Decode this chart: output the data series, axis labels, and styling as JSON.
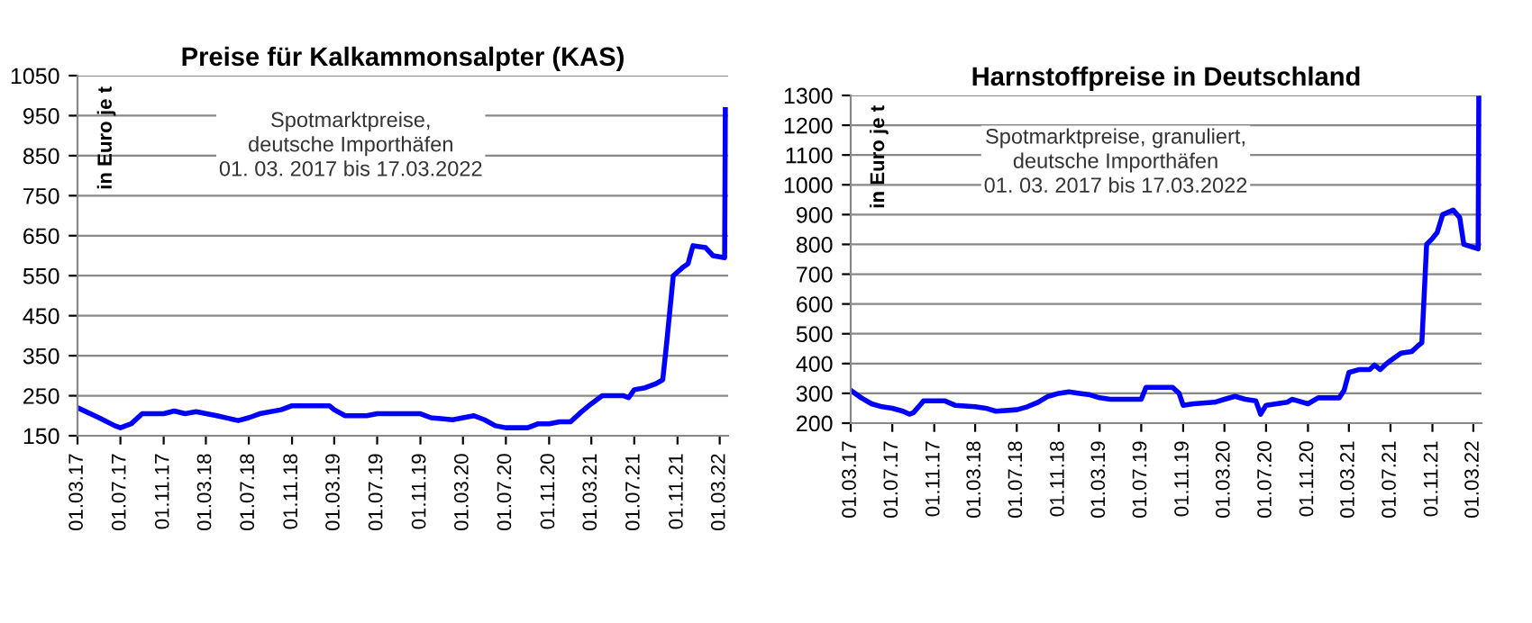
{
  "chart_data": [
    {
      "type": "line",
      "title": "Preise für Kalkammonsalpter (KAS)",
      "ylabel": "in Euro je t",
      "annotations": [
        "Spotmarktpreise,\ndeutsche Importhäfen\n01. 03. 2017 bis 17.03.2022"
      ],
      "x": [
        "2017-03-01",
        "2017-05-01",
        "2017-06-15",
        "2017-07-01",
        "2017-08-01",
        "2017-09-01",
        "2017-11-01",
        "2017-12-01",
        "2018-01-01",
        "2018-02-01",
        "2018-04-01",
        "2018-06-01",
        "2018-07-01",
        "2018-08-01",
        "2018-10-01",
        "2018-11-01",
        "2019-02-15",
        "2019-03-01",
        "2019-04-01",
        "2019-06-01",
        "2019-07-01",
        "2019-11-01",
        "2019-12-01",
        "2020-02-01",
        "2020-04-01",
        "2020-05-01",
        "2020-06-01",
        "2020-07-01",
        "2020-09-01",
        "2020-10-01",
        "2020-11-01",
        "2020-12-01",
        "2021-01-01",
        "2021-02-01",
        "2021-03-01",
        "2021-04-01",
        "2021-06-01",
        "2021-06-15",
        "2021-07-01",
        "2021-08-01",
        "2021-09-01",
        "2021-09-20",
        "2021-10-01",
        "2021-10-20",
        "2021-11-15",
        "2021-12-01",
        "2021-12-15",
        "2022-01-20",
        "2022-02-10",
        "2022-03-15",
        "2022-03-17"
      ],
      "series": [
        {
          "color": "#0000ff",
          "values": [
            220,
            195,
            175,
            170,
            180,
            205,
            205,
            212,
            205,
            210,
            200,
            188,
            195,
            205,
            215,
            225,
            225,
            215,
            200,
            200,
            205,
            205,
            195,
            190,
            200,
            190,
            175,
            170,
            170,
            180,
            180,
            185,
            185,
            210,
            230,
            250,
            250,
            245,
            265,
            270,
            280,
            290,
            380,
            550,
            570,
            580,
            625,
            620,
            600,
            595,
            965
          ]
        }
      ],
      "xlim": [
        "2017-03-01",
        "2022-03-25"
      ],
      "ylim": [
        150,
        1050
      ],
      "yticks": [
        150,
        250,
        350,
        450,
        550,
        650,
        750,
        850,
        950,
        1050
      ],
      "xticks": [
        {
          "value": "2017-03-01",
          "label": "01.03.17"
        },
        {
          "value": "2017-07-01",
          "label": "01.07.17"
        },
        {
          "value": "2017-11-01",
          "label": "01.11.17"
        },
        {
          "value": "2018-03-01",
          "label": "01.03.18"
        },
        {
          "value": "2018-07-01",
          "label": "01.07.18"
        },
        {
          "value": "2018-11-01",
          "label": "01.11.18"
        },
        {
          "value": "2019-03-01",
          "label": "01.03.19"
        },
        {
          "value": "2019-07-01",
          "label": "01.07.19"
        },
        {
          "value": "2019-11-01",
          "label": "01.11.19"
        },
        {
          "value": "2020-03-01",
          "label": "01.03.20"
        },
        {
          "value": "2020-07-01",
          "label": "01.07.20"
        },
        {
          "value": "2020-11-01",
          "label": "01.11.20"
        },
        {
          "value": "2021-03-01",
          "label": "01.03.21"
        },
        {
          "value": "2021-07-01",
          "label": "01.07.21"
        },
        {
          "value": "2021-11-01",
          "label": "01.11.21"
        },
        {
          "value": "2022-03-01",
          "label": "01.03.22"
        }
      ],
      "grid": "y"
    },
    {
      "type": "line",
      "title": "Harnstoffpreise in Deutschland",
      "ylabel": "in Euro je t",
      "annotations": [
        "Spotmarktpreise, granuliert,\ndeutsche Importhäfen\n01. 03. 2017 bis 17.03.2022"
      ],
      "x": [
        "2017-03-01",
        "2017-04-01",
        "2017-05-01",
        "2017-06-01",
        "2017-07-01",
        "2017-08-01",
        "2017-08-20",
        "2017-09-01",
        "2017-10-01",
        "2017-12-01",
        "2018-01-01",
        "2018-03-01",
        "2018-04-01",
        "2018-05-01",
        "2018-07-01",
        "2018-08-01",
        "2018-09-01",
        "2018-10-01",
        "2018-11-01",
        "2018-12-01",
        "2019-01-01",
        "2019-02-01",
        "2019-03-01",
        "2019-04-01",
        "2019-07-01",
        "2019-07-15",
        "2019-10-01",
        "2019-10-20",
        "2019-11-01",
        "2019-12-01",
        "2020-02-01",
        "2020-03-01",
        "2020-04-01",
        "2020-05-01",
        "2020-06-01",
        "2020-06-15",
        "2020-07-01",
        "2020-09-01",
        "2020-09-15",
        "2020-10-01",
        "2020-11-01",
        "2020-12-01",
        "2021-02-01",
        "2021-02-15",
        "2021-03-01",
        "2021-04-01",
        "2021-05-01",
        "2021-05-15",
        "2021-06-01",
        "2021-06-15",
        "2021-07-01",
        "2021-08-01",
        "2021-09-01",
        "2021-09-20",
        "2021-10-01",
        "2021-10-15",
        "2021-11-01",
        "2021-11-15",
        "2021-12-01",
        "2022-01-01",
        "2022-01-20",
        "2022-02-01",
        "2022-03-15",
        "2022-03-17"
      ],
      "series": [
        {
          "color": "#0000ff",
          "values": [
            310,
            285,
            265,
            255,
            250,
            240,
            230,
            235,
            275,
            275,
            260,
            255,
            250,
            240,
            245,
            255,
            270,
            290,
            300,
            305,
            300,
            295,
            285,
            280,
            280,
            320,
            320,
            300,
            260,
            265,
            270,
            280,
            290,
            280,
            275,
            230,
            260,
            270,
            280,
            275,
            265,
            285,
            285,
            310,
            370,
            380,
            380,
            395,
            380,
            395,
            410,
            435,
            440,
            460,
            470,
            800,
            820,
            840,
            900,
            915,
            890,
            800,
            785,
            1290
          ]
        }
      ],
      "xlim": [
        "2017-03-01",
        "2022-03-25"
      ],
      "ylim": [
        200,
        1300
      ],
      "yticks": [
        200,
        300,
        400,
        500,
        600,
        700,
        800,
        900,
        1000,
        1100,
        1200,
        1300
      ],
      "xticks": [
        {
          "value": "2017-03-01",
          "label": "01.03.17"
        },
        {
          "value": "2017-07-01",
          "label": "01.07.17"
        },
        {
          "value": "2017-11-01",
          "label": "01.11.17"
        },
        {
          "value": "2018-03-01",
          "label": "01.03.18"
        },
        {
          "value": "2018-07-01",
          "label": "01.07.18"
        },
        {
          "value": "2018-11-01",
          "label": "01.11.18"
        },
        {
          "value": "2019-03-01",
          "label": "01.03.19"
        },
        {
          "value": "2019-07-01",
          "label": "01.07.19"
        },
        {
          "value": "2019-11-01",
          "label": "01.11.19"
        },
        {
          "value": "2020-03-01",
          "label": "01.03.20"
        },
        {
          "value": "2020-07-01",
          "label": "01.07.20"
        },
        {
          "value": "2020-11-01",
          "label": "01.11.20"
        },
        {
          "value": "2021-03-01",
          "label": "01.03.21"
        },
        {
          "value": "2021-07-01",
          "label": "01.07.21"
        },
        {
          "value": "2021-11-01",
          "label": "01.11.21"
        },
        {
          "value": "2022-03-01",
          "label": "01.03.22"
        }
      ],
      "grid": "y"
    }
  ]
}
